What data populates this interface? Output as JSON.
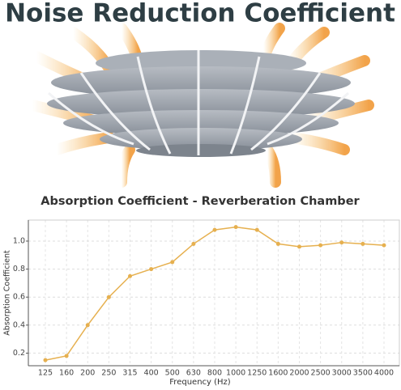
{
  "header": {
    "title": "Noise Reduction Coefficient"
  },
  "chart_data": {
    "type": "line",
    "title": "Absorption Coefficient - Reverberation Chamber",
    "x_label": "Frequency (Hz)",
    "y_label": "Absorption Coefficient",
    "categories": [
      "125",
      "160",
      "200",
      "250",
      "315",
      "400",
      "500",
      "630",
      "800",
      "1000",
      "1250",
      "1600",
      "2000",
      "2500",
      "3000",
      "3500",
      "4000"
    ],
    "values": [
      0.15,
      0.18,
      0.4,
      0.6,
      0.75,
      0.8,
      0.85,
      0.98,
      1.08,
      1.1,
      1.08,
      0.98,
      0.96,
      0.97,
      0.99,
      0.98,
      0.97
    ],
    "color": "#e6b04f",
    "ylim": [
      0.11,
      1.15
    ],
    "yticks": [
      0.2,
      0.4,
      0.6,
      0.8,
      {
        "value": 1.0,
        "label": "1.0"
      }
    ],
    "grid": true
  }
}
